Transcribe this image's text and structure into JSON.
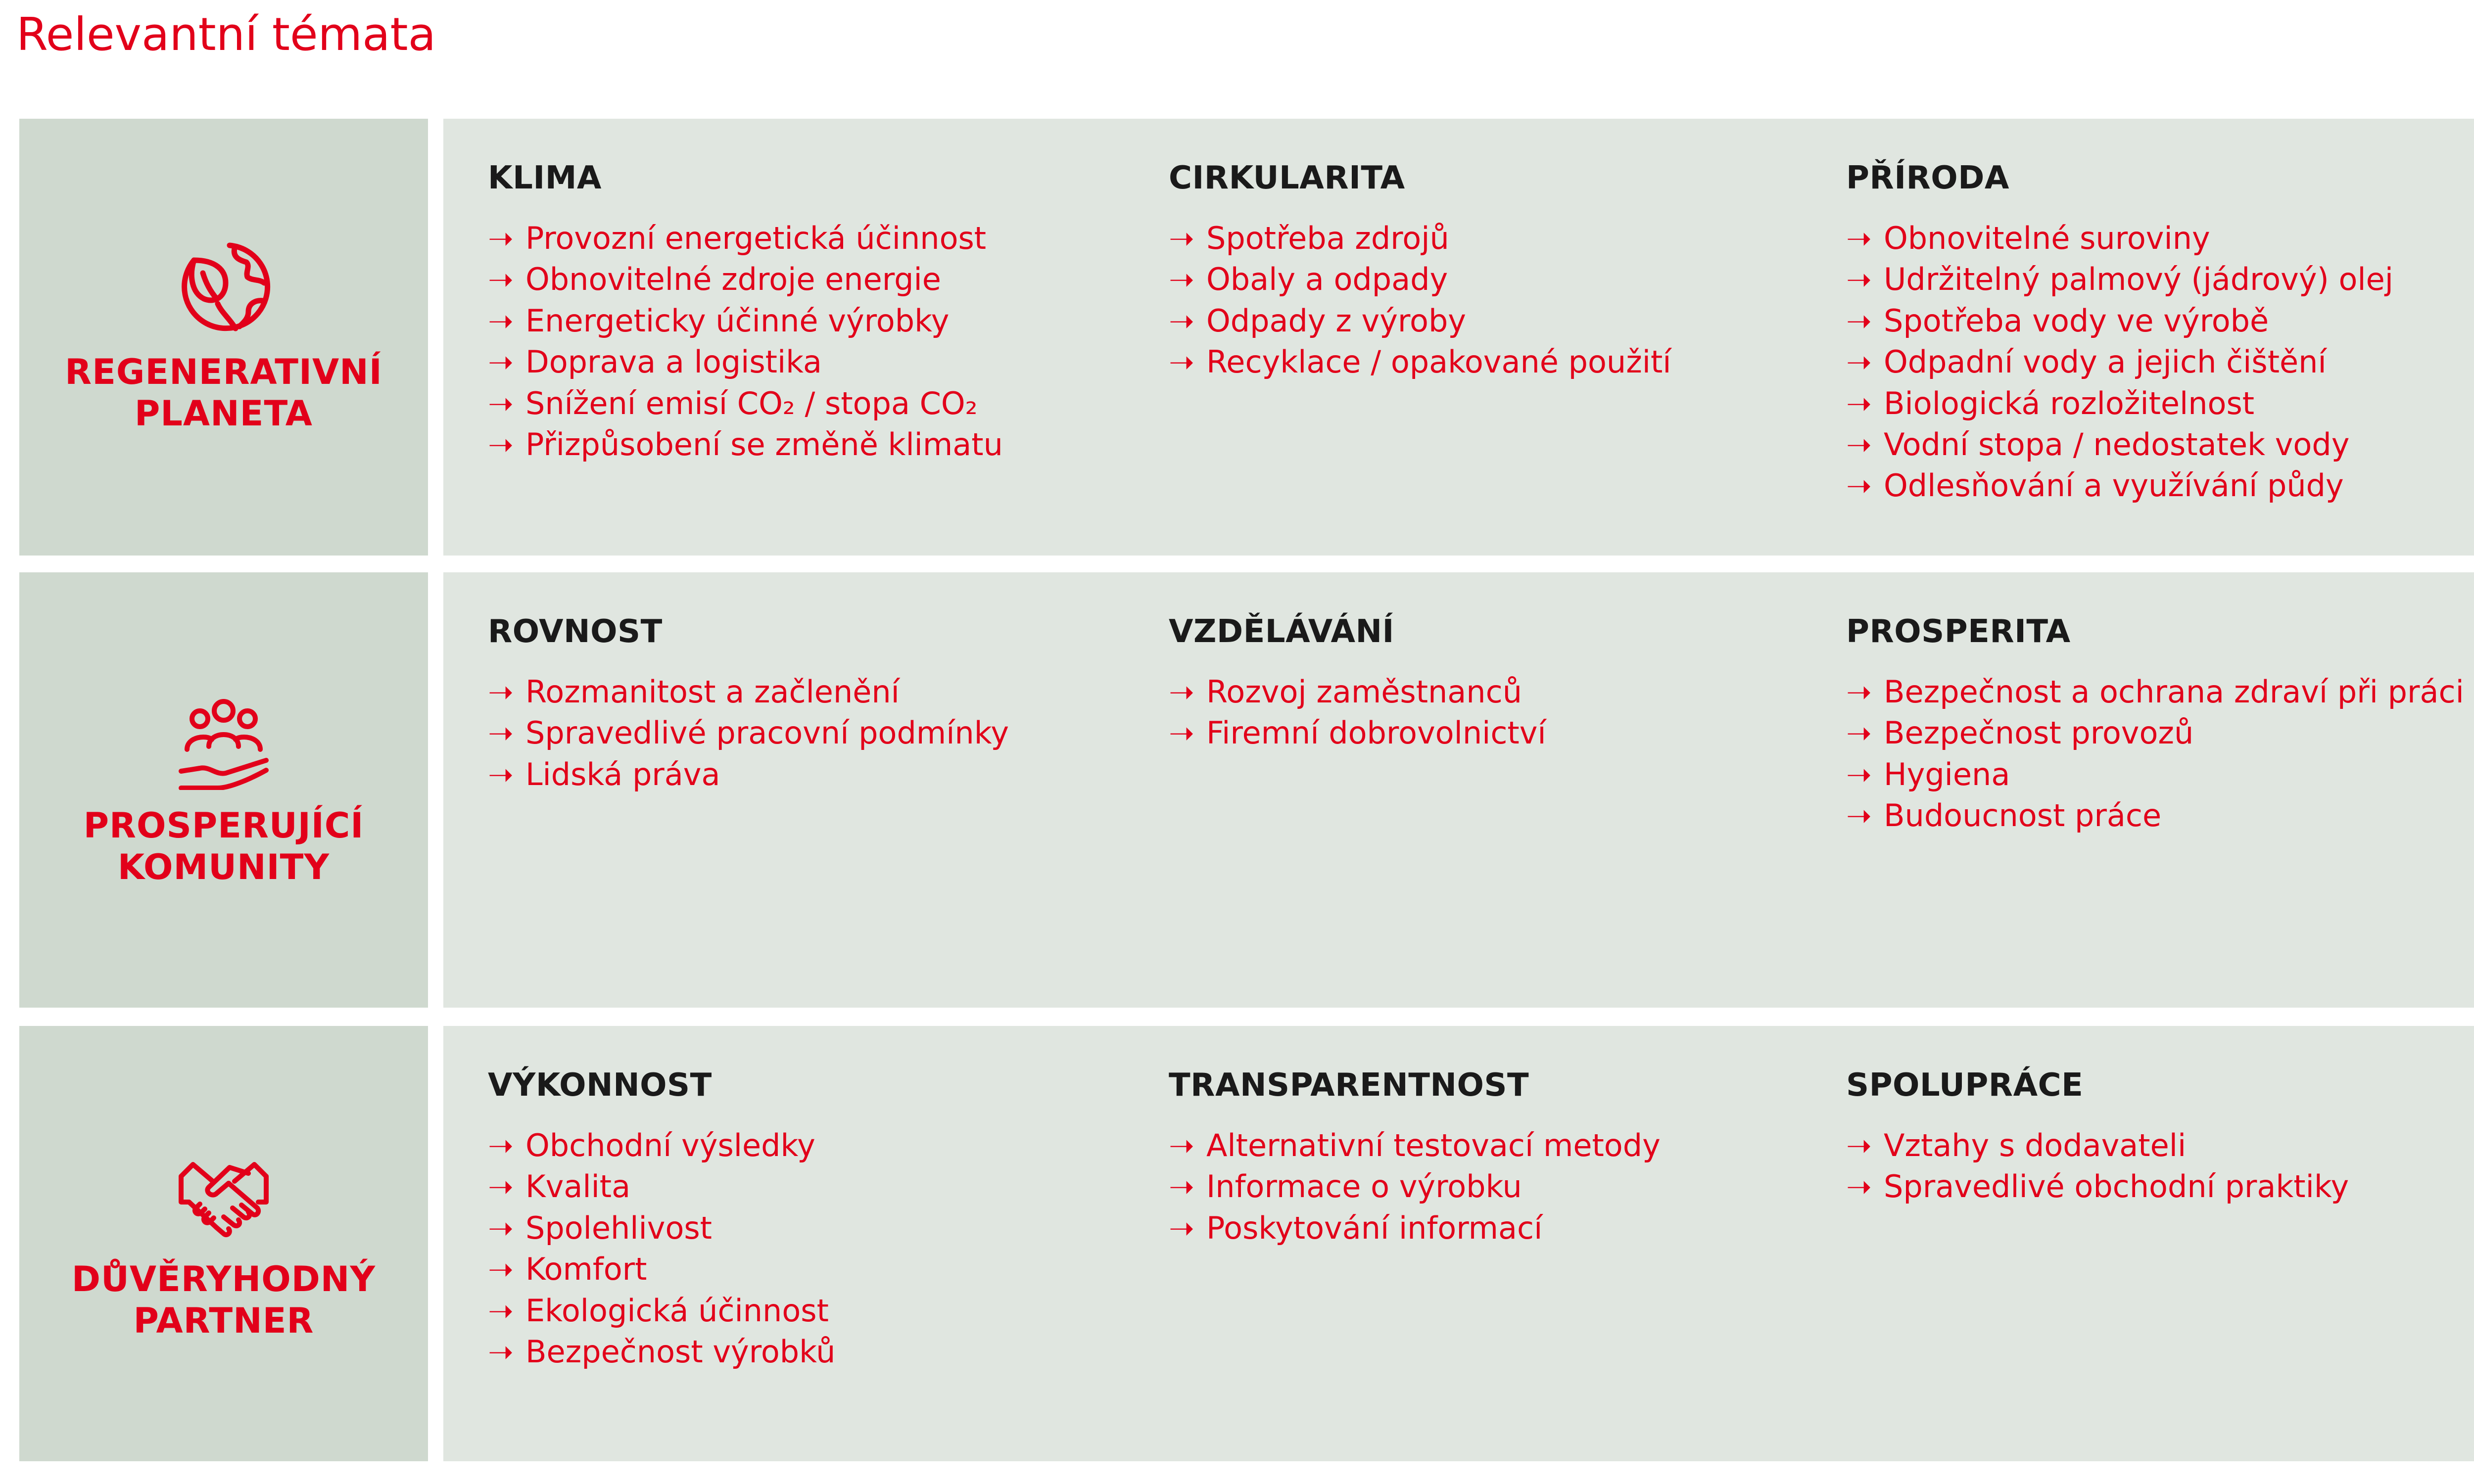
{
  "page": {
    "title": "Relevantní témata"
  },
  "colors": {
    "accent_red": "#e2001a",
    "left_panel_bg": "#cfd9cf",
    "right_panel_bg": "#e0e6e0",
    "heading_text": "#1a1a1a"
  },
  "arrow_glyph": "➝",
  "rows": [
    {
      "icon": "globe-leaf-icon",
      "category_line1": "REGENERATIVNÍ",
      "category_line2": "PLANETA",
      "columns": [
        {
          "heading": "KLIMA",
          "items": [
            "Provozní energetická účinnost",
            "Obnovitelné zdroje energie",
            "Energeticky účinné výrobky",
            "Doprava a logistika",
            "Snížení emisí CO₂ / stopa CO₂",
            "Přizpůsobení se změně klimatu"
          ]
        },
        {
          "heading": "CIRKULARITA",
          "items": [
            "Spotřeba zdrojů",
            "Obaly a odpady",
            "Odpady z výroby",
            "Recyklace / opakované použití"
          ]
        },
        {
          "heading": "PŘÍRODA",
          "items": [
            "Obnovitelné suroviny",
            "Udržitelný palmový (jádrový) olej",
            "Spotřeba vody ve výrobě",
            "Odpadní vody a jejich čištění",
            "Biologická rozložitelnost",
            "Vodní stopa / nedostatek vody",
            "Odlesňování a využívání půdy"
          ]
        }
      ]
    },
    {
      "icon": "people-hand-icon",
      "category_line1": "PROSPERUJÍCÍ",
      "category_line2": "KOMUNITY",
      "columns": [
        {
          "heading": "ROVNOST",
          "items": [
            "Rozmanitost a začlenění",
            "Spravedlivé pracovní podmínky",
            "Lidská práva"
          ]
        },
        {
          "heading": "VZDĚLÁVÁNÍ",
          "items": [
            "Rozvoj zaměstnanců",
            "Firemní dobrovolnictví"
          ]
        },
        {
          "heading": "PROSPERITA",
          "items": [
            "Bezpečnost a ochrana zdraví při práci",
            "Bezpečnost provozů",
            "Hygiena",
            "Budoucnost práce"
          ]
        }
      ]
    },
    {
      "icon": "handshake-icon",
      "category_line1": "DŮVĚRYHODNÝ",
      "category_line2": "PARTNER",
      "columns": [
        {
          "heading": "VÝKONNOST",
          "items": [
            "Obchodní výsledky",
            "Kvalita",
            "Spolehlivost",
            "Komfort",
            "Ekologická účinnost",
            "Bezpečnost výrobků"
          ]
        },
        {
          "heading": "TRANSPARENTNOST",
          "items": [
            "Alternativní testovací metody",
            "Informace o výrobku",
            "Poskytování informací"
          ]
        },
        {
          "heading": "SPOLUPRÁCE",
          "items": [
            "Vztahy s dodavateli",
            "Spravedlivé obchodní praktiky"
          ]
        }
      ]
    }
  ]
}
